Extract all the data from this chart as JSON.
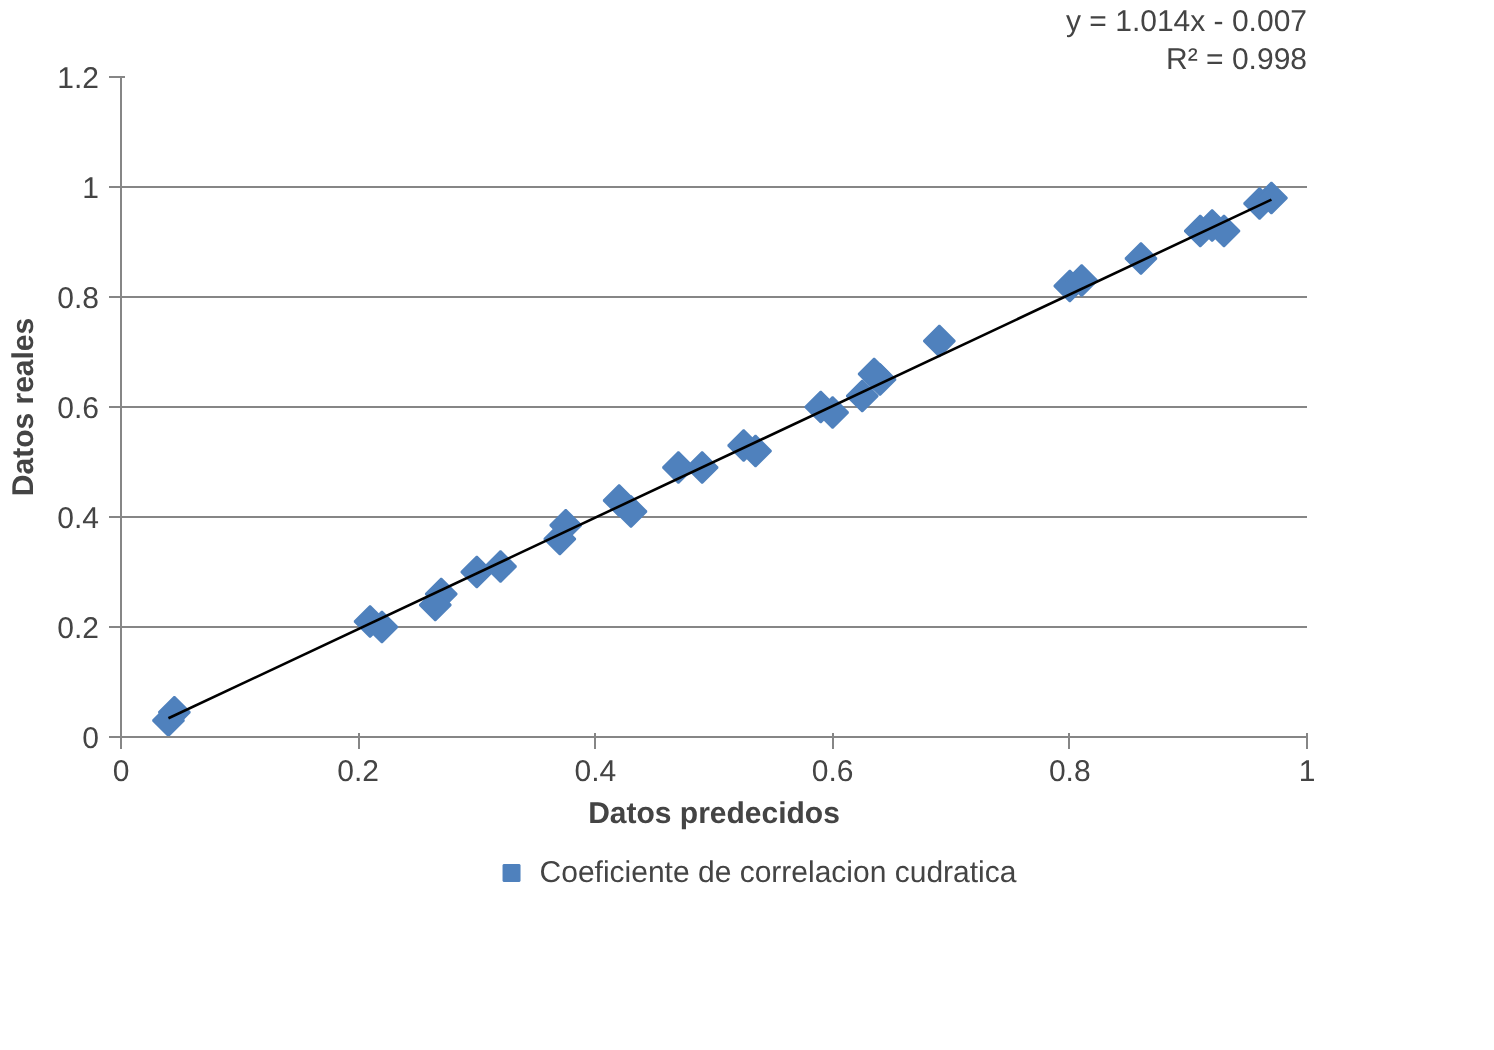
{
  "chart_data": {
    "type": "scatter",
    "xlabel": "Datos predecidos",
    "ylabel": "Datos reales",
    "marker": "diamond",
    "grid": "y",
    "legend": "bottom",
    "xlim": [
      0,
      1
    ],
    "xticks": [
      0,
      0.2,
      0.4,
      0.6,
      0.8,
      1
    ],
    "ylim": [
      0,
      1.2
    ],
    "yticks": [
      0,
      0.2,
      0.4,
      0.6,
      0.8,
      1,
      1.2
    ],
    "annotations": [
      "y = 1.014x - 0.007",
      "R² = 0.998"
    ],
    "series": [
      {
        "name": "Coeficiente de correlacion cudratica",
        "color": "#4f81bd",
        "x": [
          0.04,
          0.045,
          0.21,
          0.22,
          0.27,
          0.265,
          0.3,
          0.32,
          0.375,
          0.37,
          0.42,
          0.43,
          0.47,
          0.49,
          0.525,
          0.535,
          0.59,
          0.6,
          0.625,
          0.635,
          0.64,
          0.69,
          0.8,
          0.81,
          0.86,
          0.91,
          0.93,
          0.92,
          0.96,
          0.97
        ],
        "values": [
          0.03,
          0.045,
          0.21,
          0.2,
          0.26,
          0.24,
          0.3,
          0.31,
          0.385,
          0.36,
          0.43,
          0.41,
          0.49,
          0.49,
          0.53,
          0.52,
          0.6,
          0.59,
          0.62,
          0.66,
          0.65,
          0.72,
          0.82,
          0.83,
          0.87,
          0.92,
          0.92,
          0.93,
          0.97,
          0.98
        ]
      },
      {
        "type": "line",
        "color": "#000000",
        "x": [
          0.04,
          0.97
        ],
        "values": [
          0.034,
          0.977
        ],
        "marker": "none"
      }
    ]
  }
}
